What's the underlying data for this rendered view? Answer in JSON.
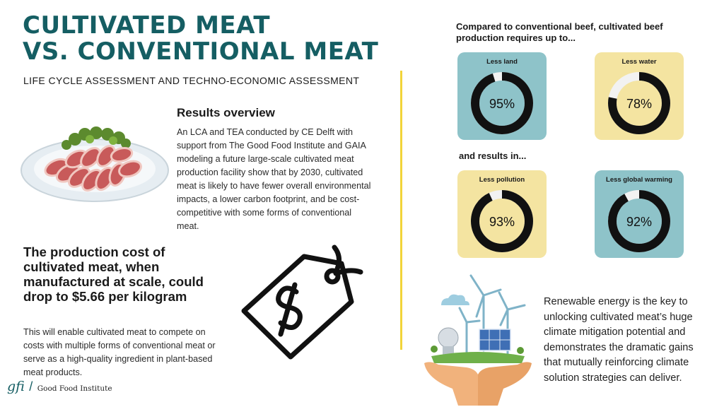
{
  "header": {
    "title_line1": "CULTIVATED MEAT",
    "title_line2": "VS. CONVENTIONAL MEAT",
    "subtitle": "LIFE CYCLE ASSESSMENT AND TECHNO-ECONOMIC ASSESSMENT"
  },
  "results": {
    "heading": "Results overview",
    "body": "An LCA and TEA conducted by CE Delft with support from The Good Food Institute and GAIA modeling a future large-scale cultivated meat production facility show that by 2030, cultivated meat is likely to have fewer overall environmental impacts, a lower carbon footprint, and be cost-competitive with some forms of conventional meat."
  },
  "cost": {
    "heading": "The production cost of cultivated meat, when manufactured at scale, could drop to $5.66 per kilogram",
    "body": "This will enable cultivated meat to compete on costs with multiple forms of conventional meat or serve as a high-quality ingredient in plant-based meat products."
  },
  "compare": {
    "heading": "Compared to conventional beef, cultivated beef production requires up to...",
    "results_in": "and results in..."
  },
  "cards": [
    {
      "label": "Less land",
      "value": "95%",
      "fraction": 0.95,
      "bg": "#8ec3c9"
    },
    {
      "label": "Less water",
      "value": "78%",
      "fraction": 0.78,
      "bg": "#f4e4a1"
    },
    {
      "label": "Less pollution",
      "value": "93%",
      "fraction": 0.93,
      "bg": "#f4e4a1"
    },
    {
      "label": "Less global warming",
      "value": "92%",
      "fraction": 0.92,
      "bg": "#8ec3c9"
    }
  ],
  "renewable": {
    "text": "Renewable energy is the key to unlocking cultivated meat’s huge climate mitigation potential and demonstrates the dramatic gains that mutually reinforcing climate solution strategies can deliver."
  },
  "logo": {
    "mark": "gfi",
    "name": "Good Food Institute"
  },
  "colors": {
    "brand_teal": "#155e63",
    "accent_yellow": "#f2d43a"
  },
  "icons": [
    "meat-plate-icon",
    "price-tag-icon",
    "renewable-energy-icon"
  ]
}
